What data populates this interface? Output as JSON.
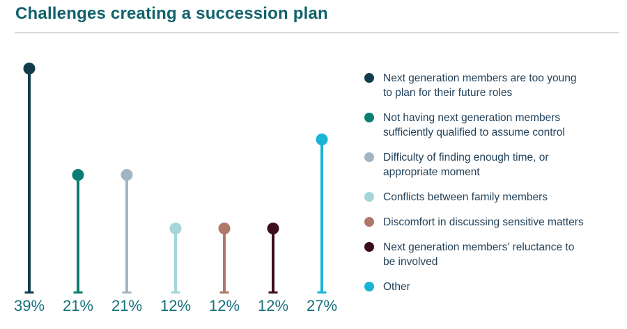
{
  "title": "Challenges creating a succession plan",
  "chart_data": {
    "type": "lollipop",
    "title": "Challenges creating a succession plan",
    "categories": [
      "Next generation members are too young to plan for their future roles",
      "Not having next generation members sufficiently qualified to assume control",
      "Difficulty of finding enough time, or appropriate moment",
      "Conflicts between family members",
      "Discomfort in discussing sensitive matters",
      "Next generation members' reluctance to be involved",
      "Other"
    ],
    "values": [
      39,
      21,
      21,
      12,
      12,
      12,
      27
    ],
    "labels": [
      "39%",
      "21%",
      "21%",
      "12%",
      "12%",
      "12%",
      "27%"
    ],
    "colors": [
      "#113c4c",
      "#0a7e71",
      "#a3b4c3",
      "#a6d5d8",
      "#b0786a",
      "#3c0d1d",
      "#17b4d6"
    ],
    "xlabel": "",
    "ylabel": "",
    "ylim": [
      0,
      39
    ],
    "grid": false,
    "legend_position": "right"
  },
  "legend": {
    "items": [
      {
        "label": "Next generation members are too young\nto plan for their future roles",
        "color": "#113c4c"
      },
      {
        "label": "Not having next generation members\nsufficiently qualified to assume control",
        "color": "#0a7e71"
      },
      {
        "label": "Difficulty of finding enough time, or\nappropriate moment",
        "color": "#a3b4c3"
      },
      {
        "label": "Conflicts between family members",
        "color": "#a6d5d8"
      },
      {
        "label": "Discomfort in discussing sensitive matters",
        "color": "#b0786a"
      },
      {
        "label": "Next generation members' reluctance to\nbe involved",
        "color": "#3c0d1d"
      },
      {
        "label": "Other",
        "color": "#17b4d6"
      }
    ]
  },
  "colors": {
    "title_text": "#10616c",
    "value_label_text": "#15707c",
    "legend_text": "#24425a",
    "divider": "#d9d9d9",
    "background": "#ffffff"
  }
}
